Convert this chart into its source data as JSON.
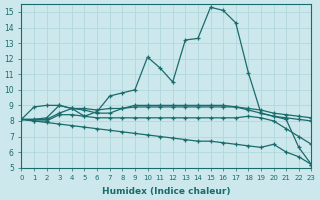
{
  "xlabel": "Humidex (Indice chaleur)",
  "xlim": [
    0,
    23
  ],
  "ylim": [
    5,
    15.5
  ],
  "yticks": [
    5,
    6,
    7,
    8,
    9,
    10,
    11,
    12,
    13,
    14,
    15
  ],
  "xticks": [
    0,
    1,
    2,
    3,
    4,
    5,
    6,
    7,
    8,
    9,
    10,
    11,
    12,
    13,
    14,
    15,
    16,
    17,
    18,
    19,
    20,
    21,
    22,
    23
  ],
  "bg_color": "#cce8ec",
  "line_color": "#1a6b6b",
  "grid_color": "#b0d8dc",
  "lines": [
    {
      "x": [
        0,
        1,
        2,
        3,
        4,
        5,
        6,
        7,
        8,
        9,
        10,
        11,
        12,
        13,
        14,
        15,
        16,
        17,
        18,
        19,
        20,
        21,
        22,
        23
      ],
      "y": [
        8.1,
        8.9,
        9.0,
        9.0,
        8.8,
        8.3,
        8.6,
        9.6,
        9.8,
        10.0,
        12.1,
        11.4,
        10.5,
        13.2,
        13.3,
        15.3,
        15.1,
        14.3,
        11.1,
        8.5,
        8.3,
        8.1,
        6.3,
        5.2
      ]
    },
    {
      "x": [
        0,
        2,
        3,
        4,
        5,
        6,
        7,
        8,
        9,
        10,
        11,
        12,
        13,
        14,
        15,
        16,
        17,
        18,
        19,
        20,
        21,
        22,
        23
      ],
      "y": [
        8.1,
        8.1,
        8.5,
        8.8,
        8.8,
        8.7,
        8.8,
        8.8,
        8.9,
        8.9,
        8.9,
        8.9,
        8.9,
        8.9,
        8.9,
        8.9,
        8.9,
        8.8,
        8.7,
        8.5,
        8.4,
        8.3,
        8.2
      ]
    },
    {
      "x": [
        0,
        1,
        2,
        3,
        4,
        5,
        6,
        7,
        8,
        9,
        10,
        11,
        12,
        13,
        14,
        15,
        16,
        17,
        18,
        19,
        20,
        21,
        22,
        23
      ],
      "y": [
        8.1,
        8.1,
        8.2,
        9.0,
        8.8,
        8.7,
        8.5,
        8.5,
        8.8,
        9.0,
        9.0,
        9.0,
        9.0,
        9.0,
        9.0,
        9.0,
        9.0,
        8.9,
        8.7,
        8.5,
        8.3,
        8.2,
        8.1,
        8.0
      ]
    },
    {
      "x": [
        0,
        1,
        2,
        3,
        4,
        5,
        6,
        7,
        8,
        9,
        10,
        11,
        12,
        13,
        14,
        15,
        16,
        17,
        18,
        19,
        20,
        21,
        22,
        23
      ],
      "y": [
        8.1,
        8.0,
        8.0,
        8.4,
        8.4,
        8.3,
        8.2,
        8.2,
        8.2,
        8.2,
        8.2,
        8.2,
        8.2,
        8.2,
        8.2,
        8.2,
        8.2,
        8.2,
        8.3,
        8.2,
        8.0,
        7.5,
        7.0,
        6.5
      ]
    },
    {
      "x": [
        0,
        1,
        2,
        3,
        4,
        5,
        6,
        7,
        8,
        9,
        10,
        11,
        12,
        13,
        14,
        15,
        16,
        17,
        18,
        19,
        20,
        21,
        22,
        23
      ],
      "y": [
        8.1,
        8.0,
        7.9,
        7.8,
        7.7,
        7.6,
        7.5,
        7.4,
        7.3,
        7.2,
        7.1,
        7.0,
        6.9,
        6.8,
        6.7,
        6.7,
        6.6,
        6.5,
        6.4,
        6.3,
        6.5,
        6.0,
        5.7,
        5.2
      ]
    }
  ]
}
